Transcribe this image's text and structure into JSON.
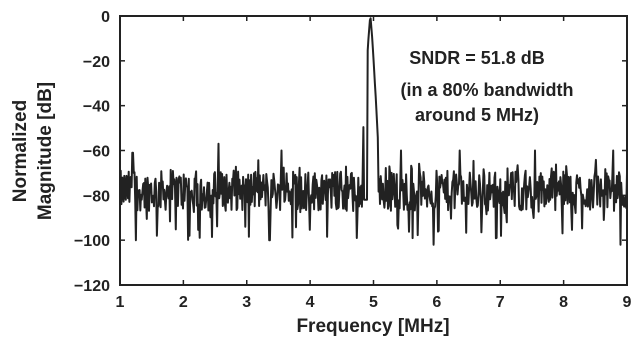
{
  "chart_data": {
    "type": "line",
    "xlabel": "Frequency [MHz]",
    "ylabel": [
      "Normalized",
      "Magnitude [dB]"
    ],
    "xlim": [
      1,
      9
    ],
    "ylim": [
      -120,
      0
    ],
    "xticks": [
      1,
      2,
      3,
      4,
      5,
      6,
      7,
      8,
      9
    ],
    "yticks": [
      0,
      -20,
      -40,
      -60,
      -80,
      -100,
      -120
    ],
    "ytick_labels": [
      "0",
      "−20",
      "−40",
      "−60",
      "−80",
      "−100",
      "−120"
    ],
    "grid": false,
    "legend": "none",
    "line_color": "#222222",
    "annotations": [
      "SNDR = 51.8 dB",
      "(in a 80% bandwidth",
      "around 5 MHz)"
    ],
    "series": [
      {
        "noise_floor_db": -78,
        "peak": {
          "x": 4.95,
          "y": 0
        }
      }
    ]
  }
}
